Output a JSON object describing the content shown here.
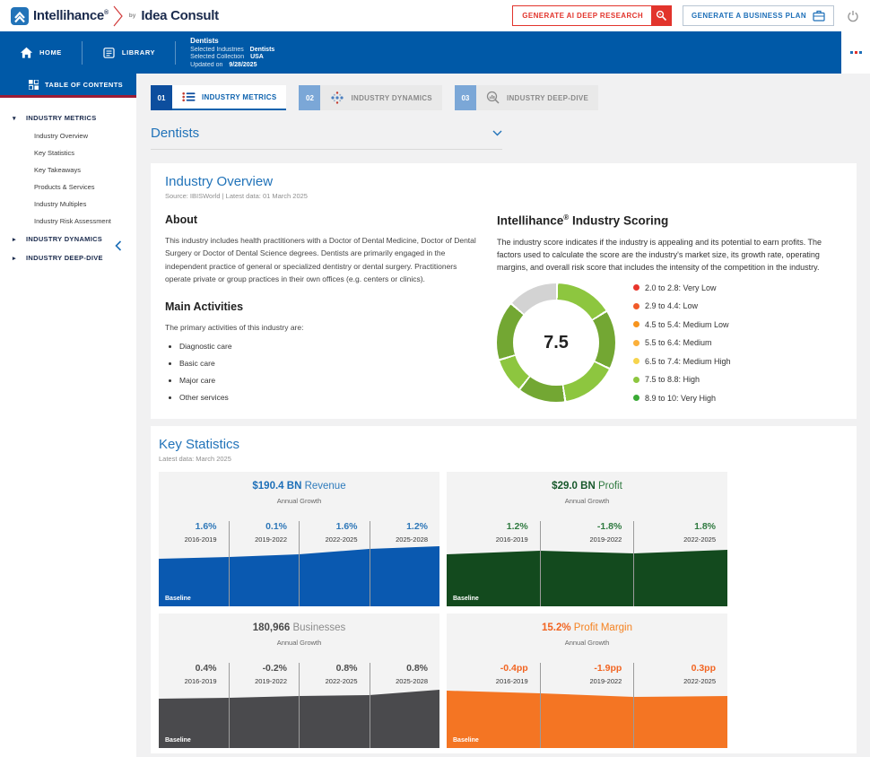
{
  "header": {
    "brand": {
      "name": "Intellihance",
      "reg": "®",
      "by": "by",
      "product": "Idea Consult"
    },
    "buttons": {
      "deep_research": "GENERATE AI DEEP RESEARCH",
      "business_plan": "GENERATE A BUSINESS PLAN"
    }
  },
  "navbar": {
    "home": "HOME",
    "library": "LIBRARY",
    "context": {
      "title": "Dentists",
      "rows": [
        {
          "label": "Selected Industries",
          "value": "Dentists"
        },
        {
          "label": "Selected Collection",
          "value": "USA"
        },
        {
          "label": "Updated on",
          "value": "9/28/2025"
        }
      ]
    }
  },
  "sidebar": {
    "toc": "TABLE OF CONTENTS",
    "sections": [
      {
        "label": "INDUSTRY METRICS",
        "expanded": true,
        "items": [
          "Industry Overview",
          "Key Statistics",
          "Key Takeaways",
          "Products & Services",
          "Industry Multiples",
          "Industry Risk Assessment"
        ]
      },
      {
        "label": "INDUSTRY DYNAMICS",
        "expanded": false,
        "items": []
      },
      {
        "label": "INDUSTRY DEEP-DIVE",
        "expanded": false,
        "items": []
      }
    ]
  },
  "tabs": [
    {
      "num": "01",
      "label": "INDUSTRY METRICS"
    },
    {
      "num": "02",
      "label": "INDUSTRY DYNAMICS"
    },
    {
      "num": "03",
      "label": "INDUSTRY DEEP-DIVE"
    }
  ],
  "collapsible": {
    "title": "Dentists"
  },
  "overview": {
    "title": "Industry Overview",
    "source": "Source: IBISWorld | Latest data: 01 March 2025",
    "about_title": "About",
    "about_text": "This industry includes health practitioners with a Doctor of Dental Medicine, Doctor of Dental Surgery or Doctor of Dental Science degrees. Dentists are primarily engaged in the independent practice of general or specialized dentistry or dental surgery. Practitioners operate private or group practices in their own offices (e.g. centers or clinics).",
    "activities_title": "Main Activities",
    "activities_intro": "The primary activities of this industry are:",
    "activities": [
      "Diagnostic care",
      "Basic care",
      "Major care",
      "Other services"
    ],
    "scoring": {
      "title_brand": "Intellihance",
      "title_reg": "®",
      "title_rest": " Industry Scoring",
      "description": "The industry score indicates if the industry is appealing and its potential to earn profits. The factors used to calculate the score are the industry's market size, its growth rate, operating margins, and overall risk score that includes the intensity of the competition in the industry.",
      "score": "7.5",
      "legend": [
        {
          "color": "#e8352c",
          "label": "2.0 to 2.8: Very Low"
        },
        {
          "color": "#f15a29",
          "label": "2.9 to 4.4: Low"
        },
        {
          "color": "#f7941e",
          "label": "4.5 to 5.4: Medium Low"
        },
        {
          "color": "#fbb03b",
          "label": "5.5 to 6.4: Medium"
        },
        {
          "color": "#f6d44d",
          "label": "6.5 to 7.4: Medium High"
        },
        {
          "color": "#8dc63f",
          "label": "7.5 to 8.8: High"
        },
        {
          "color": "#3aaa35",
          "label": "8.9 to 10: Very High"
        }
      ],
      "donut_segments": [
        {
          "from": 0,
          "to": 57,
          "color": "#8dc63f"
        },
        {
          "from": 57,
          "to": 115,
          "color": "#73a733"
        },
        {
          "from": 115,
          "to": 170,
          "color": "#8dc63f"
        },
        {
          "from": 170,
          "to": 217,
          "color": "#73a733"
        },
        {
          "from": 217,
          "to": 252,
          "color": "#8dc63f"
        },
        {
          "from": 252,
          "to": 310,
          "color": "#73a733"
        },
        {
          "from": 310,
          "to": 360,
          "color": "#d3d3d3"
        }
      ]
    }
  },
  "keystats": {
    "title": "Key Statistics",
    "source": "Latest data: March 2025",
    "cards": [
      {
        "value": "$190.4 BN",
        "label": "Revenue",
        "sub": "Annual Growth",
        "baseline": "Baseline",
        "value_color": "#1d6fb8",
        "label_color": "#2e7bbc",
        "growth_color": "#2e77b8",
        "chart_color": "#0a59b0",
        "periods": [
          {
            "growth": "1.6%",
            "range": "2016-2019"
          },
          {
            "growth": "0.1%",
            "range": "2019-2022"
          },
          {
            "growth": "1.6%",
            "range": "2022-2025"
          },
          {
            "growth": "1.2%",
            "range": "2025-2028"
          }
        ],
        "profile": [
          [
            0,
            19
          ],
          [
            25,
            17
          ],
          [
            50,
            14
          ],
          [
            75,
            8
          ],
          [
            100,
            5
          ]
        ]
      },
      {
        "value": "$29.0 BN",
        "label": "Profit",
        "sub": "Annual Growth",
        "baseline": "Baseline",
        "value_color": "#17582b",
        "label_color": "#2f7a40",
        "growth_color": "#2f7a40",
        "chart_color": "#134a1e",
        "periods": [
          {
            "growth": "1.2%",
            "range": "2016-2019"
          },
          {
            "growth": "-1.8%",
            "range": "2019-2022"
          },
          {
            "growth": "1.8%",
            "range": "2022-2025"
          }
        ],
        "profile": [
          [
            0,
            14
          ],
          [
            33.3,
            10
          ],
          [
            66.6,
            13
          ],
          [
            100,
            9
          ]
        ]
      },
      {
        "value": "180,966",
        "label": "Businesses",
        "sub": "Annual Growth",
        "baseline": "Baseline",
        "value_color": "#4a4a4a",
        "label_color": "#8c8c8c",
        "growth_color": "#4f4f4f",
        "chart_color": "#4a4a4d",
        "periods": [
          {
            "growth": "0.4%",
            "range": "2016-2019"
          },
          {
            "growth": "-0.2%",
            "range": "2019-2022"
          },
          {
            "growth": "0.8%",
            "range": "2022-2025"
          },
          {
            "growth": "0.8%",
            "range": "2025-2028"
          }
        ],
        "profile": [
          [
            0,
            17
          ],
          [
            25,
            16
          ],
          [
            50,
            14
          ],
          [
            75,
            13
          ],
          [
            100,
            7
          ]
        ]
      },
      {
        "value": "15.2%",
        "label": "Profit Margin",
        "sub": "Annual Growth",
        "baseline": "Baseline",
        "value_color": "#f26522",
        "label_color": "#f58220",
        "growth_color": "#f26522",
        "chart_color": "#f47523",
        "periods": [
          {
            "growth": "-0.4pp",
            "range": "2016-2019"
          },
          {
            "growth": "-1.9pp",
            "range": "2019-2022"
          },
          {
            "growth": "0.3pp",
            "range": "2022-2025"
          }
        ],
        "profile": [
          [
            0,
            8
          ],
          [
            33.3,
            11
          ],
          [
            66.6,
            15
          ],
          [
            100,
            14
          ]
        ]
      }
    ]
  },
  "chart_data": [
    {
      "type": "donut",
      "title": "Intellihance Industry Scoring",
      "score": 7.5,
      "scale": [
        2,
        10
      ],
      "rating": "High"
    },
    {
      "type": "area",
      "title": "Revenue",
      "headline_value": "$190.4 BN",
      "ylabel": "Annual Growth",
      "categories": [
        "2016-2019",
        "2019-2022",
        "2022-2025",
        "2025-2028"
      ],
      "values": [
        1.6,
        0.1,
        1.6,
        1.2
      ],
      "unit": "%"
    },
    {
      "type": "area",
      "title": "Profit",
      "headline_value": "$29.0 BN",
      "ylabel": "Annual Growth",
      "categories": [
        "2016-2019",
        "2019-2022",
        "2022-2025"
      ],
      "values": [
        1.2,
        -1.8,
        1.8
      ],
      "unit": "%"
    },
    {
      "type": "area",
      "title": "Businesses",
      "headline_value": "180,966",
      "ylabel": "Annual Growth",
      "categories": [
        "2016-2019",
        "2019-2022",
        "2022-2025",
        "2025-2028"
      ],
      "values": [
        0.4,
        -0.2,
        0.8,
        0.8
      ],
      "unit": "%"
    },
    {
      "type": "area",
      "title": "Profit Margin",
      "headline_value": "15.2%",
      "ylabel": "Annual Growth",
      "categories": [
        "2016-2019",
        "2019-2022",
        "2022-2025"
      ],
      "values": [
        -0.4,
        -1.9,
        0.3
      ],
      "unit": "pp"
    }
  ]
}
